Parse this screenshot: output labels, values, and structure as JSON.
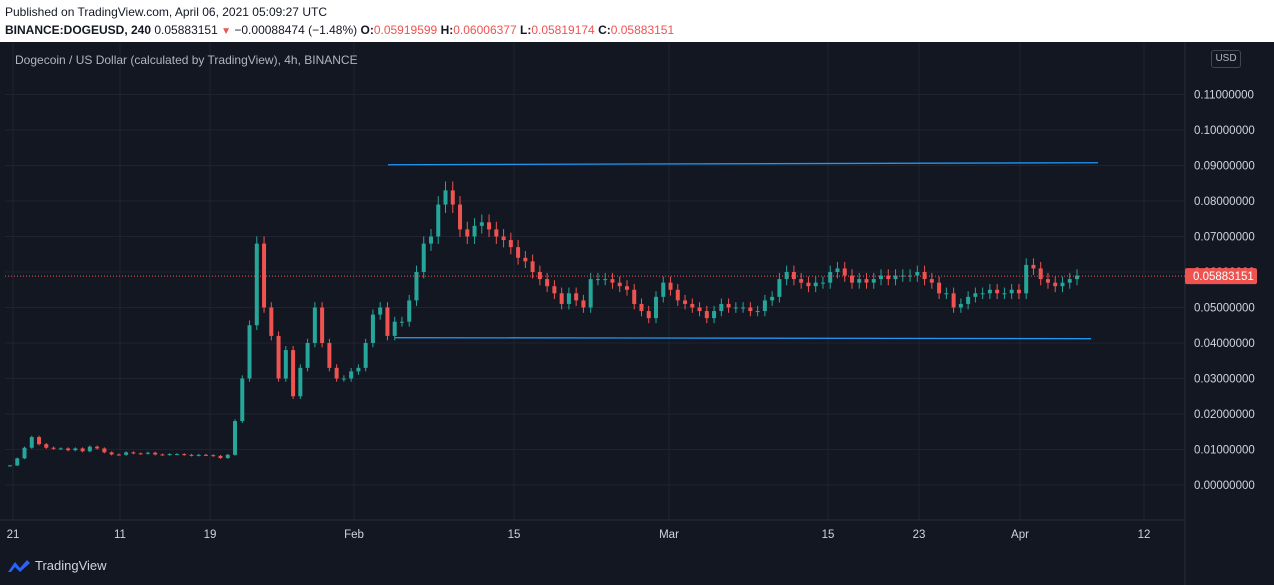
{
  "header": {
    "published": "Published on TradingView.com, April 06, 2021 05:09:27 UTC",
    "symbol": "BINANCE:DOGEUSD, 240",
    "last": "0.05883151",
    "change_arrow": "▼",
    "change": "−0.00088474 (−1.48%)",
    "open_label": "O:",
    "open": "0.05919599",
    "high_label": "H:",
    "high": "0.06006377",
    "low_label": "L:",
    "low": "0.05819174",
    "close_label": "C:",
    "close": "0.05883151"
  },
  "legend_title": "Dogecoin / US Dollar (calculated by TradingView), 4h, BINANCE",
  "currency_button": "USD",
  "brand": "TradingView",
  "colors": {
    "background": "#131722",
    "up": "#26a69a",
    "down": "#ef5350",
    "trendline": "#2196f3",
    "grid": "#1f2330",
    "price_tag": "#ef5350"
  },
  "chart_data": {
    "type": "candlestick",
    "title": "Dogecoin / US Dollar (calculated by TradingView), 4h, BINANCE",
    "y_tick_labels": [
      "0.00000000",
      "0.01000000",
      "0.02000000",
      "0.03000000",
      "0.04000000",
      "0.05000000",
      "0.06000000",
      "0.07000000",
      "0.08000000",
      "0.09000000",
      "0.10000000",
      "0.11000000"
    ],
    "x_tick_labels": [
      "21",
      "11",
      "19",
      "Feb",
      "15",
      "Mar",
      "15",
      "23",
      "Apr",
      "12"
    ],
    "ylim": [
      0,
      0.12
    ],
    "grid": true,
    "current_price_label": "0.05883151",
    "current_price": 0.05883151,
    "series": [
      {
        "name": "close",
        "values": [
          0.0055,
          0.0075,
          0.0105,
          0.0135,
          0.0115,
          0.0105,
          0.0102,
          0.0103,
          0.0098,
          0.0103,
          0.0095,
          0.0108,
          0.0103,
          0.0092,
          0.0086,
          0.0085,
          0.0092,
          0.0089,
          0.0088,
          0.0091,
          0.0086,
          0.0085,
          0.0087,
          0.0087,
          0.0085,
          0.0083,
          0.0085,
          0.0084,
          0.0082,
          0.0076,
          0.0085,
          0.018,
          0.03,
          0.045,
          0.068,
          0.05,
          0.042,
          0.03,
          0.038,
          0.025,
          0.033,
          0.04,
          0.05,
          0.04,
          0.033,
          0.03,
          0.03,
          0.032,
          0.033,
          0.04,
          0.048,
          0.05,
          0.042,
          0.046,
          0.046,
          0.052,
          0.06,
          0.068,
          0.07,
          0.079,
          0.083,
          0.079,
          0.072,
          0.07,
          0.073,
          0.074,
          0.072,
          0.07,
          0.069,
          0.067,
          0.064,
          0.063,
          0.06,
          0.058,
          0.056,
          0.054,
          0.051,
          0.054,
          0.052,
          0.05,
          0.058,
          0.058,
          0.058,
          0.057,
          0.056,
          0.055,
          0.051,
          0.049,
          0.047,
          0.053,
          0.057,
          0.055,
          0.052,
          0.051,
          0.05,
          0.049,
          0.047,
          0.049,
          0.051,
          0.05,
          0.05,
          0.05,
          0.049,
          0.049,
          0.052,
          0.053,
          0.058,
          0.06,
          0.058,
          0.057,
          0.056,
          0.057,
          0.057,
          0.06,
          0.061,
          0.059,
          0.057,
          0.058,
          0.057,
          0.058,
          0.059,
          0.058,
          0.059,
          0.059,
          0.059,
          0.06,
          0.058,
          0.057,
          0.054,
          0.054,
          0.05,
          0.051,
          0.053,
          0.054,
          0.054,
          0.055,
          0.054,
          0.054,
          0.055,
          0.054,
          0.062,
          0.061,
          0.058,
          0.057,
          0.056,
          0.057,
          0.058,
          0.059
        ]
      }
    ],
    "annotations": [
      {
        "type": "horizontal-ray",
        "price": 0.0905,
        "label": ""
      },
      {
        "type": "horizontal-ray",
        "price": 0.0415,
        "label": ""
      }
    ]
  }
}
